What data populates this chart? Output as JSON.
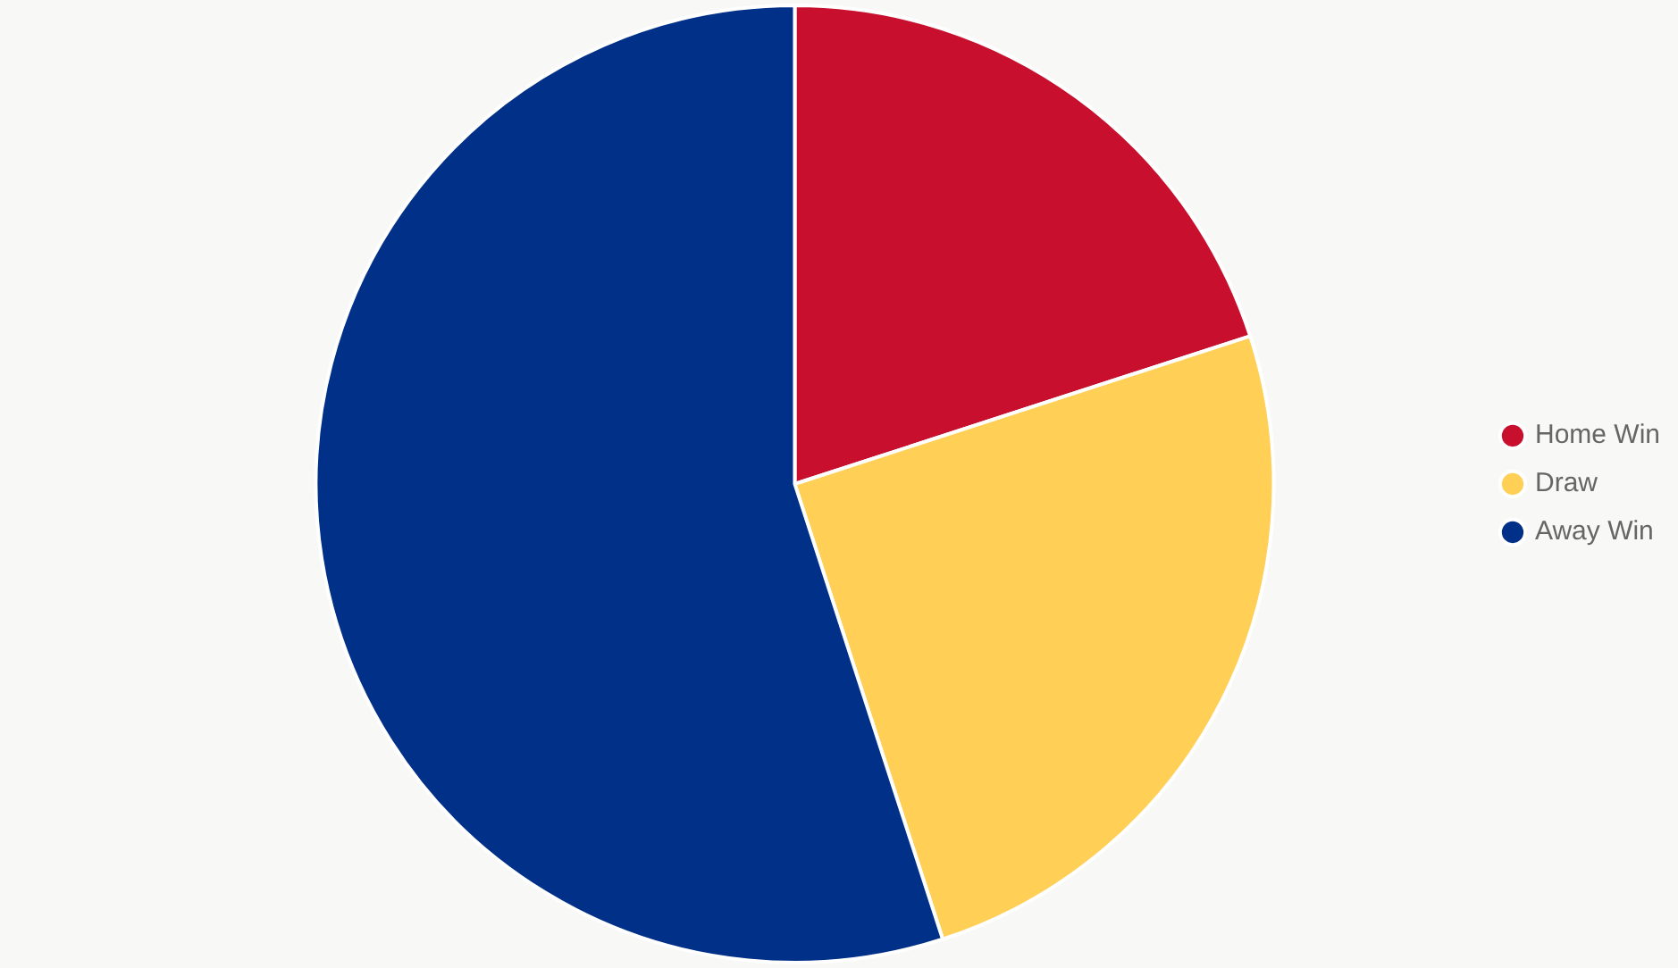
{
  "chart_data": {
    "type": "pie",
    "categories": [
      "Home Win",
      "Draw",
      "Away Win"
    ],
    "values": [
      20,
      25,
      55
    ],
    "colors": [
      "#c8102e",
      "#ffcf56",
      "#003087"
    ],
    "legend": "right"
  }
}
